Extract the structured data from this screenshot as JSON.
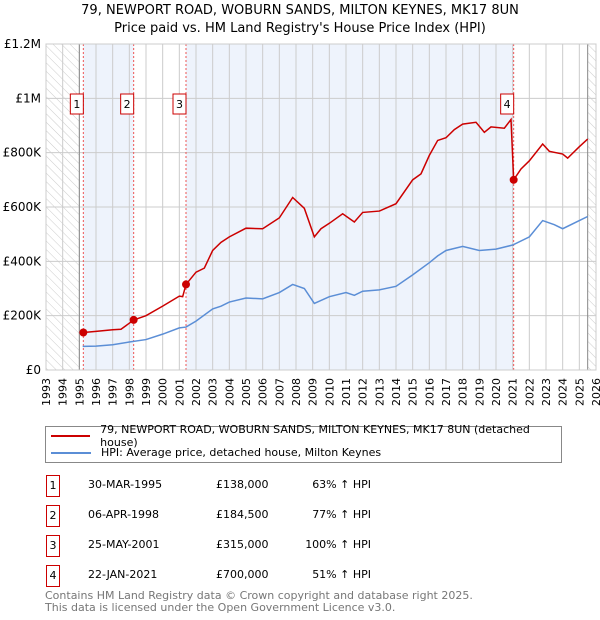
{
  "chart_data": {
    "type": "line",
    "title": "79, NEWPORT ROAD, WOBURN SANDS, MILTON KEYNES, MK17 8UN",
    "subtitle": "Price paid vs. HM Land Registry's House Price Index (HPI)",
    "xlim": [
      1993,
      2026
    ],
    "ylim": [
      0,
      1200000
    ],
    "x_ticks": [
      "1993",
      "1994",
      "1995",
      "1996",
      "1997",
      "1998",
      "1999",
      "2000",
      "2001",
      "2002",
      "2003",
      "2004",
      "2005",
      "2006",
      "2007",
      "2008",
      "2009",
      "2010",
      "2011",
      "2012",
      "2013",
      "2014",
      "2015",
      "2016",
      "2017",
      "2018",
      "2019",
      "2020",
      "2021",
      "2022",
      "2023",
      "2024",
      "2025",
      "2026"
    ],
    "y_ticks": [
      {
        "v": 0,
        "label": "£0"
      },
      {
        "v": 200000,
        "label": "£200K"
      },
      {
        "v": 400000,
        "label": "£400K"
      },
      {
        "v": 600000,
        "label": "£600K"
      },
      {
        "v": 800000,
        "label": "£800K"
      },
      {
        "v": 1000000,
        "label": "£1M"
      },
      {
        "v": 1200000,
        "label": "£1.2M"
      }
    ],
    "grid": true,
    "legend_position": "below",
    "series": [
      {
        "name": "79, NEWPORT ROAD, WOBURN SANDS, MILTON KEYNES, MK17 8UN (detached house)",
        "color": "#cc0000",
        "points": [
          [
            1995.25,
            138000
          ],
          [
            1996,
            142000
          ],
          [
            1997,
            148000
          ],
          [
            1997.5,
            150000
          ],
          [
            1998.27,
            184500
          ],
          [
            1999,
            200000
          ],
          [
            2000,
            235000
          ],
          [
            2001,
            272000
          ],
          [
            2001.2,
            270000
          ],
          [
            2001.4,
            315000
          ],
          [
            2002,
            360000
          ],
          [
            2002.5,
            375000
          ],
          [
            2003,
            440000
          ],
          [
            2003.5,
            470000
          ],
          [
            2004,
            490000
          ],
          [
            2005,
            522000
          ],
          [
            2006,
            520000
          ],
          [
            2007,
            560000
          ],
          [
            2007.8,
            635000
          ],
          [
            2008.5,
            595000
          ],
          [
            2009.1,
            490000
          ],
          [
            2009.5,
            520000
          ],
          [
            2010,
            540000
          ],
          [
            2010.8,
            575000
          ],
          [
            2011.5,
            545000
          ],
          [
            2012,
            580000
          ],
          [
            2013,
            585000
          ],
          [
            2014,
            612000
          ],
          [
            2015,
            700000
          ],
          [
            2015.5,
            722000
          ],
          [
            2016,
            790000
          ],
          [
            2016.5,
            845000
          ],
          [
            2017,
            855000
          ],
          [
            2017.5,
            885000
          ],
          [
            2018,
            905000
          ],
          [
            2018.8,
            912000
          ],
          [
            2019.3,
            875000
          ],
          [
            2019.7,
            895000
          ],
          [
            2020.5,
            890000
          ],
          [
            2020.9,
            922000
          ],
          [
            2021.06,
            700000
          ],
          [
            2021.5,
            740000
          ],
          [
            2022,
            770000
          ],
          [
            2022.8,
            832000
          ],
          [
            2023.2,
            805000
          ],
          [
            2024,
            795000
          ],
          [
            2024.3,
            780000
          ],
          [
            2025,
            822000
          ],
          [
            2025.5,
            850000
          ]
        ]
      },
      {
        "name": "HPI: Average price, detached house, Milton Keynes",
        "color": "#5b8ed6",
        "points": [
          [
            1995.2,
            87000
          ],
          [
            1996,
            88000
          ],
          [
            1997,
            93000
          ],
          [
            1998,
            103000
          ],
          [
            1999,
            112000
          ],
          [
            2000,
            132000
          ],
          [
            2001,
            155000
          ],
          [
            2001.4,
            158000
          ],
          [
            2002,
            180000
          ],
          [
            2003,
            225000
          ],
          [
            2003.5,
            235000
          ],
          [
            2004,
            250000
          ],
          [
            2005,
            265000
          ],
          [
            2006,
            262000
          ],
          [
            2007,
            285000
          ],
          [
            2007.8,
            315000
          ],
          [
            2008.5,
            300000
          ],
          [
            2009.1,
            245000
          ],
          [
            2010,
            270000
          ],
          [
            2011,
            285000
          ],
          [
            2011.5,
            275000
          ],
          [
            2012,
            290000
          ],
          [
            2013,
            295000
          ],
          [
            2014,
            308000
          ],
          [
            2015,
            350000
          ],
          [
            2016,
            395000
          ],
          [
            2016.5,
            420000
          ],
          [
            2017,
            440000
          ],
          [
            2018,
            455000
          ],
          [
            2019,
            440000
          ],
          [
            2020,
            445000
          ],
          [
            2021,
            460000
          ],
          [
            2022,
            490000
          ],
          [
            2022.8,
            550000
          ],
          [
            2023.5,
            535000
          ],
          [
            2024,
            520000
          ],
          [
            2025,
            550000
          ],
          [
            2025.5,
            565000
          ]
        ]
      }
    ],
    "sales": [
      {
        "id": "1",
        "x": 1995.24,
        "price": 138000,
        "date": "30-MAR-1995",
        "price_label": "£138,000",
        "hpi": "63% ↑ HPI"
      },
      {
        "id": "2",
        "x": 1998.26,
        "price": 184500,
        "date": "06-APR-1998",
        "price_label": "£184,500",
        "hpi": "77% ↑ HPI"
      },
      {
        "id": "3",
        "x": 2001.4,
        "price": 315000,
        "date": "25-MAY-2001",
        "price_label": "£315,000",
        "hpi": "100% ↑ HPI"
      },
      {
        "id": "4",
        "x": 2021.06,
        "price": 700000,
        "date": "22-JAN-2021",
        "price_label": "£700,000",
        "hpi": "51% ↑ HPI"
      }
    ],
    "hatched_ranges": [
      [
        1993,
        1995
      ],
      [
        2025.5,
        2026
      ]
    ]
  },
  "footer": {
    "line1": "Contains HM Land Registry data © Crown copyright and database right 2025.",
    "line2": "This data is licensed under the Open Government Licence v3.0."
  }
}
